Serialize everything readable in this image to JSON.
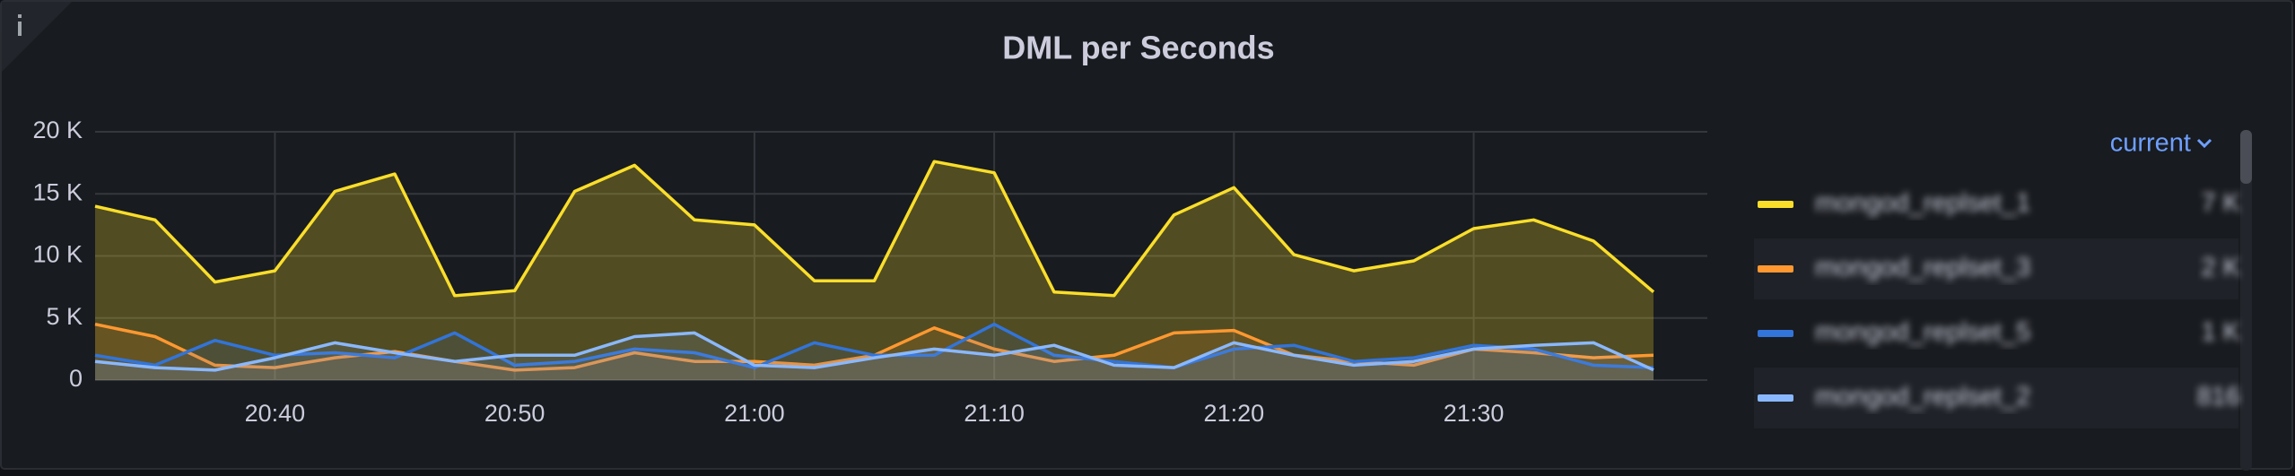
{
  "chart_data": {
    "type": "line",
    "title": "DML per Seconds",
    "categories": [
      null,
      null,
      null,
      "20:40",
      null,
      null,
      null,
      "20:50",
      null,
      null,
      null,
      "21:00",
      null,
      null,
      null,
      "21:10",
      null,
      null,
      null,
      "21:20",
      null,
      null,
      null,
      "21:30",
      null,
      null,
      null
    ],
    "ylim": [
      0,
      20000
    ],
    "yticks": [
      0,
      {
        "value": 5000,
        "label": "5 K"
      },
      {
        "value": 10000,
        "label": "10 K"
      },
      {
        "value": 15000,
        "label": "15 K"
      },
      {
        "value": 20000,
        "label": "20 K"
      }
    ],
    "grid": true,
    "area": true,
    "legend_header": "current",
    "series": [
      {
        "name": "mongod_replset_1",
        "color": "#fade2a",
        "current": "7 K",
        "values": [
          14000,
          12900,
          7900,
          8800,
          15200,
          16600,
          6800,
          7200,
          15200,
          17300,
          12900,
          12500,
          8000,
          8000,
          17600,
          16700,
          7100,
          6800,
          13300,
          15500,
          10100,
          8800,
          9600,
          12200,
          12900,
          11200,
          7100
        ]
      },
      {
        "name": "mongod_replset_3",
        "color": "#ff9830",
        "current": "2 K",
        "values": [
          4500,
          3500,
          1200,
          1000,
          1800,
          2300,
          1500,
          800,
          1000,
          2200,
          1500,
          1500,
          1200,
          2000,
          4200,
          2500,
          1500,
          2000,
          3800,
          4000,
          2000,
          1500,
          1200,
          2500,
          2200,
          1800,
          2000
        ]
      },
      {
        "name": "mongod_replset_5",
        "color": "#3274d9",
        "current": "1 K",
        "values": [
          2000,
          1200,
          3200,
          2000,
          2200,
          1800,
          3800,
          1200,
          1500,
          2500,
          2200,
          1000,
          3000,
          2000,
          2000,
          4500,
          2000,
          1500,
          1000,
          2500,
          2800,
          1500,
          1800,
          2800,
          2500,
          1200,
          1000
        ]
      },
      {
        "name": "mongod_replset_2",
        "color": "#8ab8ff",
        "current": "816",
        "values": [
          1500,
          1000,
          800,
          1800,
          3000,
          2200,
          1500,
          2000,
          2000,
          3500,
          3800,
          1200,
          1000,
          1800,
          2500,
          2000,
          2800,
          1200,
          1000,
          3000,
          2000,
          1200,
          1500,
          2500,
          2800,
          3000,
          816
        ]
      }
    ]
  }
}
